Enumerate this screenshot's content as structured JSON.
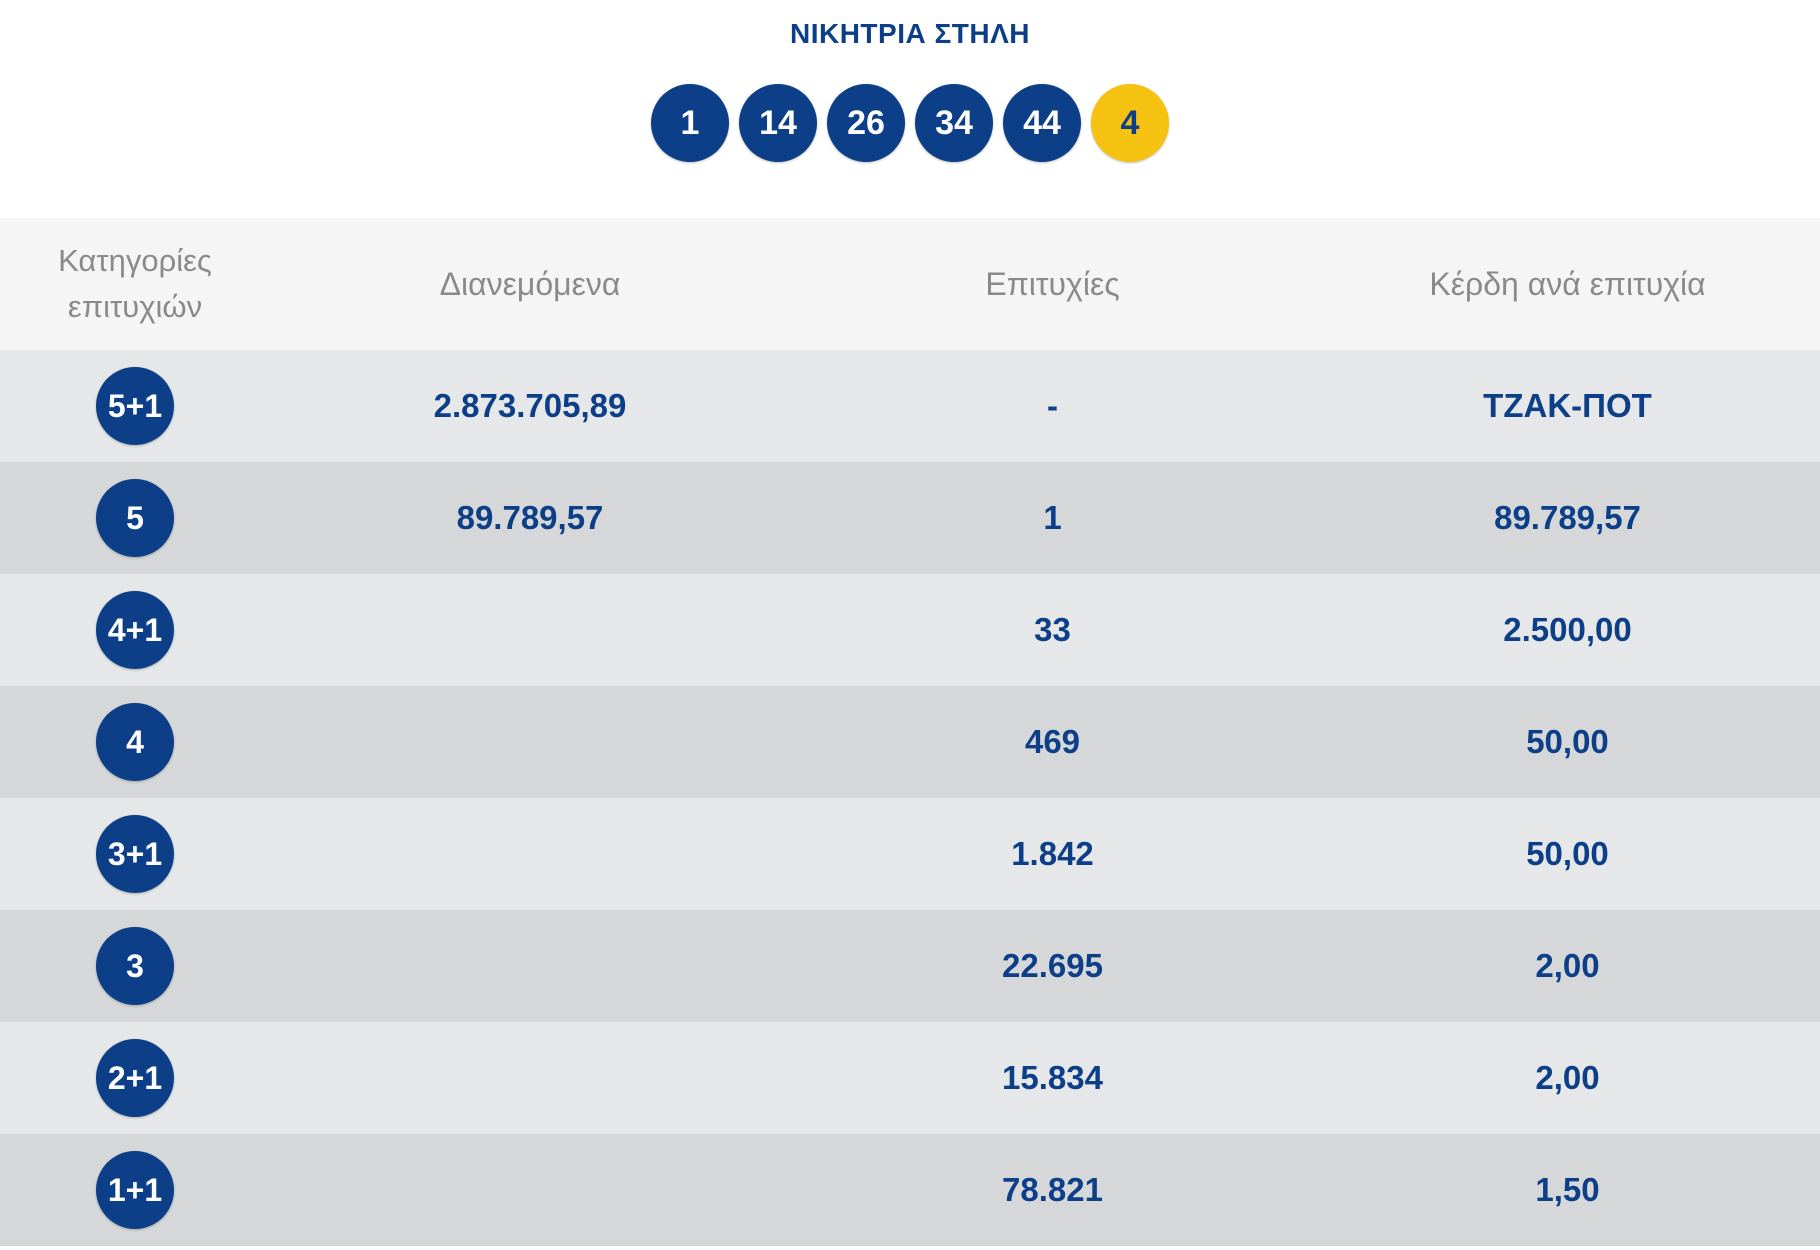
{
  "title": "ΝΙΚΗΤΡΙΑ ΣΤΗΛΗ",
  "winning_numbers": [
    "1",
    "14",
    "26",
    "34",
    "44"
  ],
  "joker_number": "4",
  "colors": {
    "primary": "#0c3f87",
    "joker": "#f5c211",
    "header_bg": "#f5f5f5",
    "row_light": "#e6e7e9",
    "row_dark": "#d6d7d9"
  },
  "table": {
    "headers": {
      "category_line1": "Κατηγορίες",
      "category_line2": "επιτυχιών",
      "distributed": "Διανεμόμενα",
      "winners": "Επιτυχίες",
      "prize": "Κέρδη ανά επιτυχία"
    },
    "rows": [
      {
        "category": "5+1",
        "distributed": "2.873.705,89",
        "winners": "-",
        "prize": "ΤΖΑΚ-ΠΟΤ"
      },
      {
        "category": "5",
        "distributed": "89.789,57",
        "winners": "1",
        "prize": "89.789,57"
      },
      {
        "category": "4+1",
        "distributed": "",
        "winners": "33",
        "prize": "2.500,00"
      },
      {
        "category": "4",
        "distributed": "",
        "winners": "469",
        "prize": "50,00"
      },
      {
        "category": "3+1",
        "distributed": "",
        "winners": "1.842",
        "prize": "50,00"
      },
      {
        "category": "3",
        "distributed": "",
        "winners": "22.695",
        "prize": "2,00"
      },
      {
        "category": "2+1",
        "distributed": "",
        "winners": "15.834",
        "prize": "2,00"
      },
      {
        "category": "1+1",
        "distributed": "",
        "winners": "78.821",
        "prize": "1,50"
      }
    ]
  }
}
